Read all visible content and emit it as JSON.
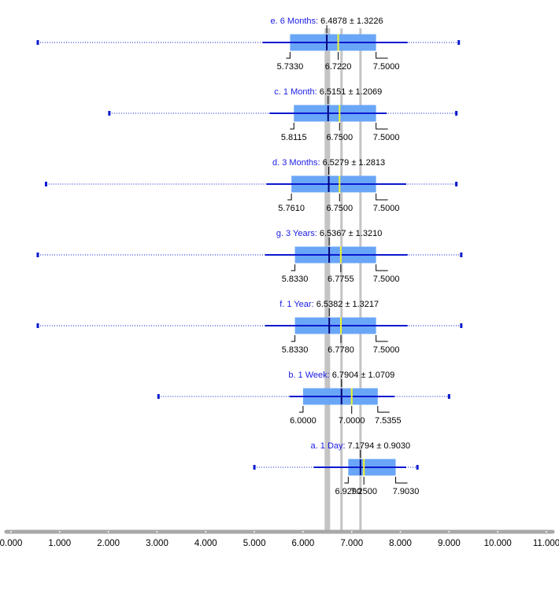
{
  "chart_data": {
    "type": "box",
    "xlim": [
      0,
      11
    ],
    "x_ticks": [
      "0.000",
      "1.000",
      "2.000",
      "3.000",
      "4.000",
      "5.000",
      "6.000",
      "7.000",
      "8.000",
      "9.000",
      "10.000",
      "11.000"
    ],
    "reference_lines": [
      6.5,
      6.79,
      7.18
    ],
    "series": [
      {
        "name": "e. 6 Months",
        "summary": "6.4878 ± 1.3226",
        "mean": 6.4878,
        "sd": 1.3226,
        "min": 0.55,
        "whisker_low": 5.17,
        "q1": 5.733,
        "median": 6.722,
        "q3": 7.5,
        "whisker_high": 8.15,
        "max": 9.2,
        "labels": [
          "5.7330",
          "6.7220",
          "7.5000"
        ]
      },
      {
        "name": "c. 1 Month",
        "summary": "6.5151 ± 1.2069",
        "mean": 6.5151,
        "sd": 1.2069,
        "min": 2.02,
        "whisker_low": 5.31,
        "q1": 5.8115,
        "median": 6.75,
        "q3": 7.5,
        "whisker_high": 7.72,
        "max": 9.15,
        "labels": [
          "5.8115",
          "6.7500",
          "7.5000"
        ]
      },
      {
        "name": "d. 3 Months",
        "summary": "6.5279 ± 1.2813",
        "mean": 6.5279,
        "sd": 1.2813,
        "min": 0.72,
        "whisker_low": 5.25,
        "q1": 5.761,
        "median": 6.75,
        "q3": 7.5,
        "whisker_high": 8.12,
        "max": 9.15,
        "labels": [
          "5.7610",
          "6.7500",
          "7.5000"
        ]
      },
      {
        "name": "g. 3 Years",
        "summary": "6.5367 ± 1.3210",
        "mean": 6.5367,
        "sd": 1.321,
        "min": 0.55,
        "whisker_low": 5.22,
        "q1": 5.833,
        "median": 6.7755,
        "q3": 7.5,
        "whisker_high": 8.15,
        "max": 9.25,
        "labels": [
          "5.8330",
          "6.7755",
          "7.5000"
        ]
      },
      {
        "name": "f. 1 Year",
        "summary": "6.5382 ± 1.3217",
        "mean": 6.5382,
        "sd": 1.3217,
        "min": 0.55,
        "whisker_low": 5.22,
        "q1": 5.833,
        "median": 6.778,
        "q3": 7.5,
        "whisker_high": 8.15,
        "max": 9.25,
        "labels": [
          "5.8330",
          "6.7780",
          "7.5000"
        ]
      },
      {
        "name": "b. 1 Week",
        "summary": "6.7904 ± 1.0709",
        "mean": 6.7904,
        "sd": 1.0709,
        "min": 3.03,
        "whisker_low": 5.72,
        "q1": 6.0,
        "median": 7.0,
        "q3": 7.5355,
        "whisker_high": 7.88,
        "max": 9.0,
        "labels": [
          "6.0000",
          "7.0000",
          "7.5355"
        ]
      },
      {
        "name": "a. 1 Day",
        "summary": "7.1794 ± 0.9030",
        "mean": 7.1794,
        "sd": 0.903,
        "min": 5.0,
        "whisker_low": 6.22,
        "q1": 6.929,
        "median": 7.25,
        "q3": 7.903,
        "whisker_high": 8.12,
        "max": 8.35,
        "labels": [
          "6.9290",
          "7.2500",
          "7.9030"
        ]
      }
    ]
  },
  "colors": {
    "box_fill": "#6aa6f7",
    "whisker": "#0a19cf",
    "median": "#f2f22a",
    "mean": "#00007a",
    "label_name": "#1a1ae6",
    "axis": "#a8a8a8",
    "ref_line": "#c4c4c4"
  }
}
